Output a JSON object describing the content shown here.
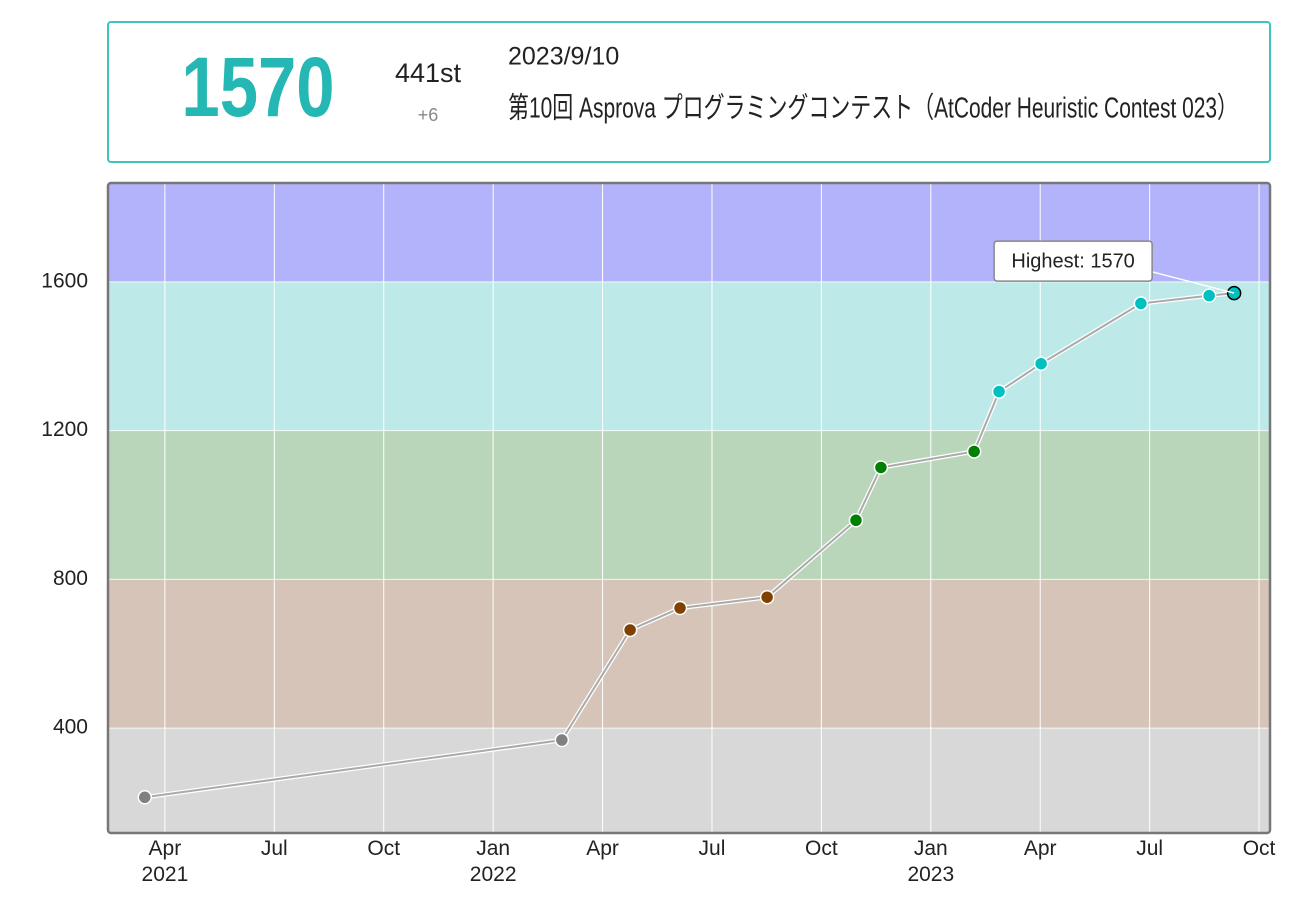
{
  "header": {
    "rating": "1570",
    "rank": "441st",
    "diff": "+6",
    "date": "2023/9/10",
    "contest": "第10回 Asprova プログラミングコンテスト（AtCoder Heuristic Contest 023）"
  },
  "chart_data": {
    "type": "line",
    "annotation": "Highest: 1570",
    "xlim": [
      2021.12,
      2023.775
    ],
    "ylim": [
      118,
      1866
    ],
    "xticks": [
      {
        "value": 2021.25,
        "label": "Apr 2021"
      },
      {
        "value": 2021.5,
        "label": "Jul"
      },
      {
        "value": 2021.75,
        "label": "Oct"
      },
      {
        "value": 2022.0,
        "label": "Jan 2022"
      },
      {
        "value": 2022.25,
        "label": "Apr"
      },
      {
        "value": 2022.5,
        "label": "Jul"
      },
      {
        "value": 2022.75,
        "label": "Oct"
      },
      {
        "value": 2023.0,
        "label": "Jan 2023"
      },
      {
        "value": 2023.25,
        "label": "Apr"
      },
      {
        "value": 2023.5,
        "label": "Jul"
      },
      {
        "value": 2023.75,
        "label": "Oct"
      }
    ],
    "yticks": [
      400,
      800,
      1200,
      1600
    ],
    "grid": true,
    "bands": [
      {
        "from": 118,
        "to": 400,
        "color": "#d8d8d8",
        "point": "#808080"
      },
      {
        "from": 400,
        "to": 800,
        "color": "#d6c4b8",
        "point": "#804000"
      },
      {
        "from": 800,
        "to": 1200,
        "color": "#b9d6ba",
        "point": "#008000"
      },
      {
        "from": 1200,
        "to": 1600,
        "color": "#bde9e9",
        "point": "#00c0c0"
      },
      {
        "from": 1600,
        "to": 1866,
        "color": "#b2b3fa",
        "point": "#0000ff"
      }
    ],
    "series": [
      {
        "color": "#aaaaaa",
        "x": [
          2021.204,
          2022.157,
          2022.313,
          2022.427,
          2022.626,
          2022.829,
          2022.886,
          2023.099,
          2023.156,
          2023.252,
          2023.48,
          2023.636,
          2023.693
        ],
        "values": [
          214,
          368,
          664,
          723,
          752,
          959,
          1101,
          1144,
          1305,
          1380,
          1542,
          1563,
          1570
        ]
      }
    ]
  }
}
